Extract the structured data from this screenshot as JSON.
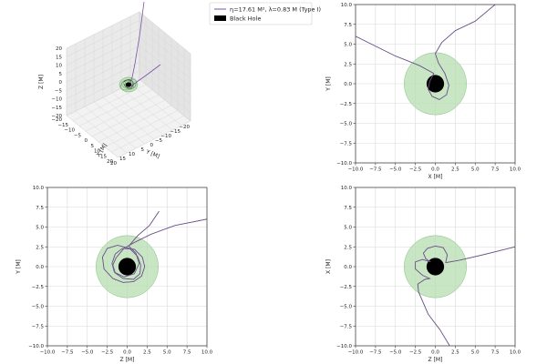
{
  "legend": {
    "entries": [
      {
        "label": "η=17.61 M², λ=0.83 M (Type I)",
        "kind": "line",
        "color": "#7b52a8"
      },
      {
        "label": "Black Hole",
        "kind": "patch",
        "color": "#000000"
      }
    ]
  },
  "colors": {
    "trajectory": "#7b52a8",
    "photon_sphere_fill": "#b7deb0",
    "photon_sphere_edge": "#7fbf7f",
    "black_hole": "#000000",
    "grid": "#d9d9d9"
  },
  "chart_data": [
    {
      "type": "line",
      "projection": "3d",
      "xlabel": "X [M]",
      "ylabel": "Y [M]",
      "zlabel": "Z [M]",
      "x_ticks": [
        "−20",
        "−15",
        "−10",
        "−5",
        "0",
        "5",
        "10",
        "15",
        "20"
      ],
      "y_ticks": [
        "−20",
        "−15",
        "−10",
        "−5",
        "0",
        "5",
        "10",
        "15",
        "20"
      ],
      "z_ticks": [
        "−20",
        "−15",
        "−10",
        "−5",
        "0",
        "5",
        "10",
        "15",
        "20"
      ],
      "xlim": [
        -20,
        20
      ],
      "ylim": [
        -20,
        20
      ],
      "zlim": [
        -20,
        20
      ],
      "grid": true
    },
    {
      "type": "line",
      "xlabel": "X [M]",
      "ylabel": "Y [M]",
      "xlim": [
        -10,
        10
      ],
      "ylim": [
        -10,
        10
      ],
      "x_ticks": [
        "−10.0",
        "−7.5",
        "−5.0",
        "−2.5",
        "0.0",
        "2.5",
        "5.0",
        "7.5",
        "10.0"
      ],
      "y_ticks": [
        "−10.0",
        "−7.5",
        "−5.0",
        "−2.5",
        "0.0",
        "2.5",
        "5.0",
        "7.5",
        "10.0"
      ],
      "grid": true,
      "photon_sphere_radius": 3.9,
      "black_hole_radius": 1.1,
      "trajectory": [
        [
          7.5,
          10
        ],
        [
          5,
          7.9
        ],
        [
          2.5,
          6.7
        ],
        [
          0.8,
          5.2
        ],
        [
          0,
          3.8
        ],
        [
          0.4,
          2.6
        ],
        [
          1.2,
          1.3
        ],
        [
          1.7,
          -0.2
        ],
        [
          1.4,
          -1.4
        ],
        [
          0.5,
          -2
        ],
        [
          -0.4,
          -1.6
        ],
        [
          -0.9,
          -0.7
        ],
        [
          -0.7,
          0.3
        ],
        [
          -0.2,
          1.3
        ],
        [
          -2,
          2.3
        ],
        [
          -5,
          3.5
        ],
        [
          -10,
          6
        ]
      ]
    },
    {
      "type": "line",
      "xlabel": "Z [M]",
      "ylabel": "Y [M]",
      "xlim": [
        -10,
        10
      ],
      "ylim": [
        -10,
        10
      ],
      "x_ticks": [
        "−10.0",
        "−7.5",
        "−5.0",
        "−2.5",
        "0.0",
        "2.5",
        "5.0",
        "7.5",
        "10.0"
      ],
      "y_ticks": [
        "−10.0",
        "−7.5",
        "−5.0",
        "−2.5",
        "0.0",
        "2.5",
        "5.0",
        "7.5",
        "10.0"
      ],
      "grid": true,
      "photon_sphere_radius": 3.9,
      "black_hole_radius": 1.1,
      "trajectory": [
        [
          10,
          6
        ],
        [
          6,
          5.2
        ],
        [
          3,
          4.1
        ],
        [
          0.8,
          3
        ],
        [
          -0.4,
          2.3
        ],
        [
          -1,
          1.6
        ],
        [
          -1.4,
          1.1
        ],
        [
          -1.8,
          0.2
        ],
        [
          -1.5,
          -0.8
        ],
        [
          -0.5,
          -1.5
        ],
        [
          0.8,
          -1.6
        ],
        [
          1.6,
          -0.9
        ],
        [
          1.7,
          0.2
        ],
        [
          1.3,
          1.3
        ],
        [
          0.3,
          2.3
        ],
        [
          -1.2,
          2.7
        ],
        [
          -2.5,
          2.3
        ],
        [
          -3.1,
          1.2
        ],
        [
          -2.9,
          -0.3
        ],
        [
          -1.8,
          -1.5
        ],
        [
          -0.5,
          -2
        ],
        [
          0.8,
          -1.9
        ],
        [
          1.8,
          -1.2
        ],
        [
          2.2,
          0
        ],
        [
          1.9,
          1.2
        ],
        [
          0.9,
          2.2
        ],
        [
          -0.6,
          2.3
        ],
        [
          -1.5,
          1.6
        ],
        [
          -1.9,
          0.4
        ],
        [
          -1.6,
          -0.7
        ],
        [
          -0.4,
          -1.3
        ],
        [
          0.9,
          -0.9
        ],
        [
          1.5,
          0.4
        ],
        [
          1.1,
          1.7
        ],
        [
          0.2,
          2.6
        ],
        [
          1.3,
          3.9
        ],
        [
          2.8,
          5.2
        ],
        [
          4,
          7
        ]
      ]
    },
    {
      "type": "line",
      "xlabel": "Z [M]",
      "ylabel": "X [M]",
      "xlim": [
        -10,
        10
      ],
      "ylim": [
        -10,
        10
      ],
      "x_ticks": [
        "−10.0",
        "−7.5",
        "−5.0",
        "−2.5",
        "0.0",
        "2.5",
        "5.0",
        "7.5",
        "10.0"
      ],
      "y_ticks": [
        "−10.0",
        "−7.5",
        "−5.0",
        "−2.5",
        "0.0",
        "2.5",
        "5.0",
        "7.5",
        "10.0"
      ],
      "grid": true,
      "photon_sphere_radius": 3.9,
      "black_hole_radius": 1.1,
      "trajectory": [
        [
          10,
          2.5
        ],
        [
          6,
          1.5
        ],
        [
          3,
          0.8
        ],
        [
          1.3,
          0.5
        ],
        [
          1.5,
          1.5
        ],
        [
          1,
          2.4
        ],
        [
          0,
          2.6
        ],
        [
          -1,
          2.3
        ],
        [
          -1.5,
          1.7
        ],
        [
          -1.2,
          1
        ],
        [
          -0.6,
          0.6
        ],
        [
          -1.6,
          0.9
        ],
        [
          -2.5,
          0.6
        ],
        [
          -2.5,
          -0.3
        ],
        [
          -1.6,
          -1.1
        ],
        [
          -0.7,
          -1.5
        ],
        [
          -1.3,
          -1.6
        ],
        [
          -2.2,
          -2.2
        ],
        [
          -2.1,
          -3.2
        ],
        [
          -0.9,
          -6
        ],
        [
          0.6,
          -8
        ],
        [
          1.8,
          -10
        ]
      ]
    }
  ]
}
